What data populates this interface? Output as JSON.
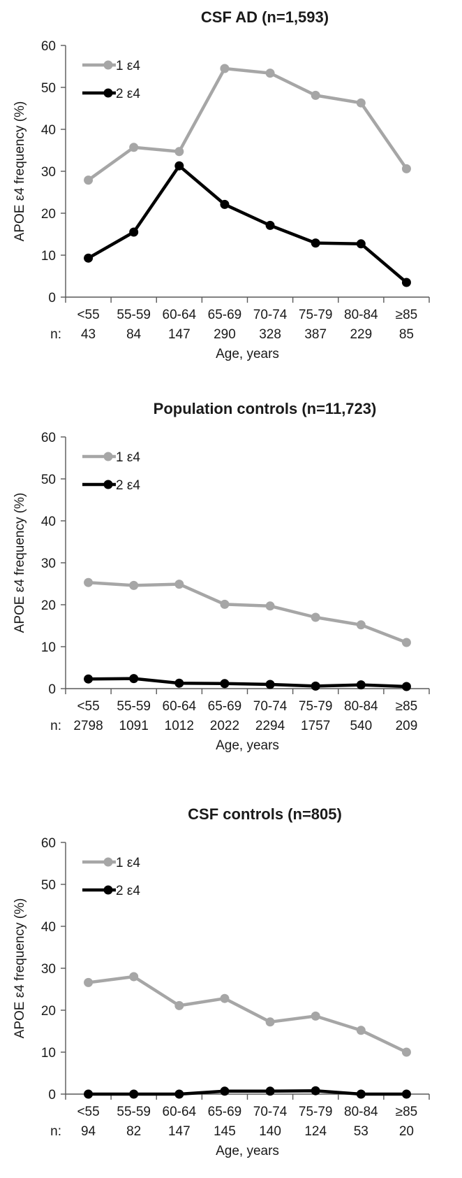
{
  "chart_data": [
    {
      "type": "line",
      "title": "CSF AD (n=1,593)",
      "ylabel": "APOE ε4 frequency (%)",
      "xlabel": "Age, years",
      "n_prefix": "n:",
      "categories": [
        "<55",
        "55-59",
        "60-64",
        "65-69",
        "70-74",
        "75-79",
        "80-84",
        "≥85"
      ],
      "n_values": [
        "43",
        "84",
        "147",
        "290",
        "328",
        "387",
        "229",
        "85"
      ],
      "ylim": [
        0,
        60
      ],
      "yticks": [
        "0",
        "10",
        "20",
        "30",
        "40",
        "50",
        "60"
      ],
      "grid": false,
      "legend": "top-left",
      "series": [
        {
          "name": "1 ε4",
          "color": "#a6a6a6",
          "values": [
            27.9,
            35.7,
            34.7,
            54.5,
            53.4,
            48.1,
            46.3,
            30.6
          ]
        },
        {
          "name": "2 ε4",
          "color": "#000000",
          "values": [
            9.3,
            15.5,
            31.3,
            22.1,
            17.1,
            12.9,
            12.7,
            3.5
          ]
        }
      ]
    },
    {
      "type": "line",
      "title": "Population controls (n=11,723)",
      "ylabel": "APOE ε4 frequency (%)",
      "xlabel": "Age, years",
      "n_prefix": "n:",
      "categories": [
        "<55",
        "55-59",
        "60-64",
        "65-69",
        "70-74",
        "75-79",
        "80-84",
        "≥85"
      ],
      "n_values": [
        "2798",
        "1091",
        "1012",
        "2022",
        "2294",
        "1757",
        "540",
        "209"
      ],
      "ylim": [
        0,
        60
      ],
      "yticks": [
        "0",
        "10",
        "20",
        "30",
        "40",
        "50",
        "60"
      ],
      "grid": false,
      "legend": "top-left",
      "series": [
        {
          "name": "1 ε4",
          "color": "#a6a6a6",
          "values": [
            25.3,
            24.6,
            24.9,
            20.1,
            19.7,
            17.0,
            15.2,
            11.0
          ]
        },
        {
          "name": "2 ε4",
          "color": "#000000",
          "values": [
            2.3,
            2.4,
            1.3,
            1.2,
            1.0,
            0.6,
            0.9,
            0.5
          ]
        }
      ]
    },
    {
      "type": "line",
      "title": "CSF controls (n=805)",
      "ylabel": "APOE ε4 frequency (%)",
      "xlabel": "Age, years",
      "n_prefix": "n:",
      "categories": [
        "<55",
        "55-59",
        "60-64",
        "65-69",
        "70-74",
        "75-79",
        "80-84",
        "≥85"
      ],
      "n_values": [
        "94",
        "82",
        "147",
        "145",
        "140",
        "124",
        "53",
        "20"
      ],
      "ylim": [
        0,
        60
      ],
      "yticks": [
        "0",
        "10",
        "20",
        "30",
        "40",
        "50",
        "60"
      ],
      "grid": false,
      "legend": "top-left",
      "series": [
        {
          "name": "1 ε4",
          "color": "#a6a6a6",
          "values": [
            26.6,
            28.0,
            21.1,
            22.8,
            17.2,
            18.6,
            15.2,
            10.0
          ]
        },
        {
          "name": "2 ε4",
          "color": "#000000",
          "values": [
            0.0,
            0.0,
            0.0,
            0.7,
            0.7,
            0.8,
            0.0,
            0.0
          ]
        }
      ]
    }
  ]
}
